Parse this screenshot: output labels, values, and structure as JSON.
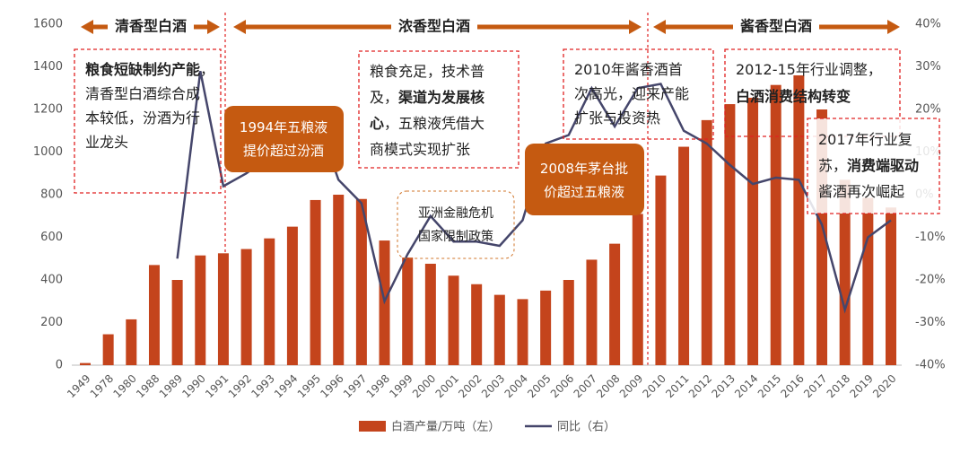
{
  "chart_data": {
    "type": "bar-line",
    "categories": [
      "1949",
      "1978",
      "1980",
      "1988",
      "1989",
      "1990",
      "1991",
      "1992",
      "1993",
      "1994",
      "1995",
      "1996",
      "1997",
      "1998",
      "1999",
      "2000",
      "2001",
      "2002",
      "2003",
      "2004",
      "2005",
      "2006",
      "2007",
      "2008",
      "2009",
      "2010",
      "2011",
      "2012",
      "2013",
      "2014",
      "2015",
      "2016",
      "2017",
      "2018",
      "2019",
      "2020"
    ],
    "series": [
      {
        "name": "白酒产量/万吨（左）",
        "type": "bar",
        "color": "#c4441c",
        "values": [
          10,
          145,
          215,
          470,
          400,
          515,
          525,
          545,
          595,
          650,
          775,
          800,
          780,
          585,
          505,
          476,
          420,
          380,
          330,
          310,
          350,
          400,
          495,
          570,
          710,
          890,
          1025,
          1150,
          1225,
          1255,
          1315,
          1360,
          1200,
          870,
          785,
          740
        ]
      },
      {
        "name": "同比（右）",
        "type": "line",
        "axis": "y2",
        "color": "#45466b",
        "values": [
          null,
          null,
          null,
          null,
          -15,
          29,
          2,
          5,
          9,
          9,
          19,
          3.5,
          -2,
          -25,
          -14,
          -5,
          -11,
          -11,
          -12,
          -6,
          12,
          14,
          25,
          16,
          25,
          26,
          15,
          12,
          7,
          2.5,
          4,
          3.5,
          -7,
          -27,
          -10,
          -6
        ]
      }
    ],
    "ylim": [
      0,
      1600
    ],
    "yticks": [
      0,
      200,
      400,
      600,
      800,
      1000,
      1200,
      1400,
      1600
    ],
    "y2lim": [
      -40,
      40
    ],
    "y2ticks": [
      {
        "value": -40,
        "label": "-40%"
      },
      {
        "value": -30,
        "label": "-30%"
      },
      {
        "value": -20,
        "label": "-20%"
      },
      {
        "value": -10,
        "label": "-10%"
      },
      {
        "value": 0,
        "label": "0%"
      },
      {
        "value": 10,
        "label": "10%"
      },
      {
        "value": 20,
        "label": "20%"
      },
      {
        "value": 30,
        "label": "30%"
      },
      {
        "value": 40,
        "label": "40%"
      }
    ],
    "eras": [
      "清香型白酒",
      "浓香型白酒",
      "酱香型白酒"
    ],
    "annotations": [
      {
        "lines": [
          [
            {
              "text": "粮食短缺制约产能",
              "bold": true
            },
            {
              "text": "，",
              "bold": false
            }
          ],
          [
            {
              "text": "清香型白酒综合成",
              "bold": false
            }
          ],
          [
            {
              "text": "本较低，汾酒为行",
              "bold": false
            }
          ],
          [
            {
              "text": "业龙头",
              "bold": false
            }
          ]
        ]
      },
      {
        "lines": [
          [
            {
              "text": "1994年五粮液",
              "bold": false
            }
          ],
          [
            {
              "text": "提价超过汾酒",
              "bold": false
            }
          ]
        ]
      },
      {
        "lines": [
          [
            {
              "text": "粮食充足，技术普",
              "bold": false
            }
          ],
          [
            {
              "text": "及，",
              "bold": false
            },
            {
              "text": "渠道为发展核",
              "bold": true
            }
          ],
          [
            {
              "text": "心",
              "bold": true
            },
            {
              "text": "，五粮液凭借大",
              "bold": false
            }
          ],
          [
            {
              "text": "商模式实现扩张",
              "bold": false
            }
          ]
        ]
      },
      {
        "lines": [
          [
            {
              "text": "亚洲金融危机",
              "bold": false
            }
          ],
          [
            {
              "text": "国家限制政策",
              "bold": false
            }
          ]
        ]
      },
      {
        "lines": [
          [
            {
              "text": "2008年茅台批",
              "bold": false
            }
          ],
          [
            {
              "text": "价超过五粮液",
              "bold": false
            }
          ]
        ]
      },
      {
        "lines": [
          [
            {
              "text": "2010年酱香酒首",
              "bold": false
            }
          ],
          [
            {
              "text": "次高光，迎来产能",
              "bold": false
            }
          ],
          [
            {
              "text": "扩张与投资热",
              "bold": false
            }
          ]
        ]
      },
      {
        "lines": [
          [
            {
              "text": "2012-15年行业调整，",
              "bold": false
            }
          ],
          [
            {
              "text": "白酒消费结构转变",
              "bold": true
            }
          ]
        ]
      },
      {
        "lines": [
          [
            {
              "text": "2017年行业复",
              "bold": false
            }
          ],
          [
            {
              "text": "苏，",
              "bold": false
            },
            {
              "text": "消费端驱动",
              "bold": true
            }
          ],
          [
            {
              "text": "酱酒再次崛起",
              "bold": false
            }
          ]
        ]
      }
    ]
  }
}
